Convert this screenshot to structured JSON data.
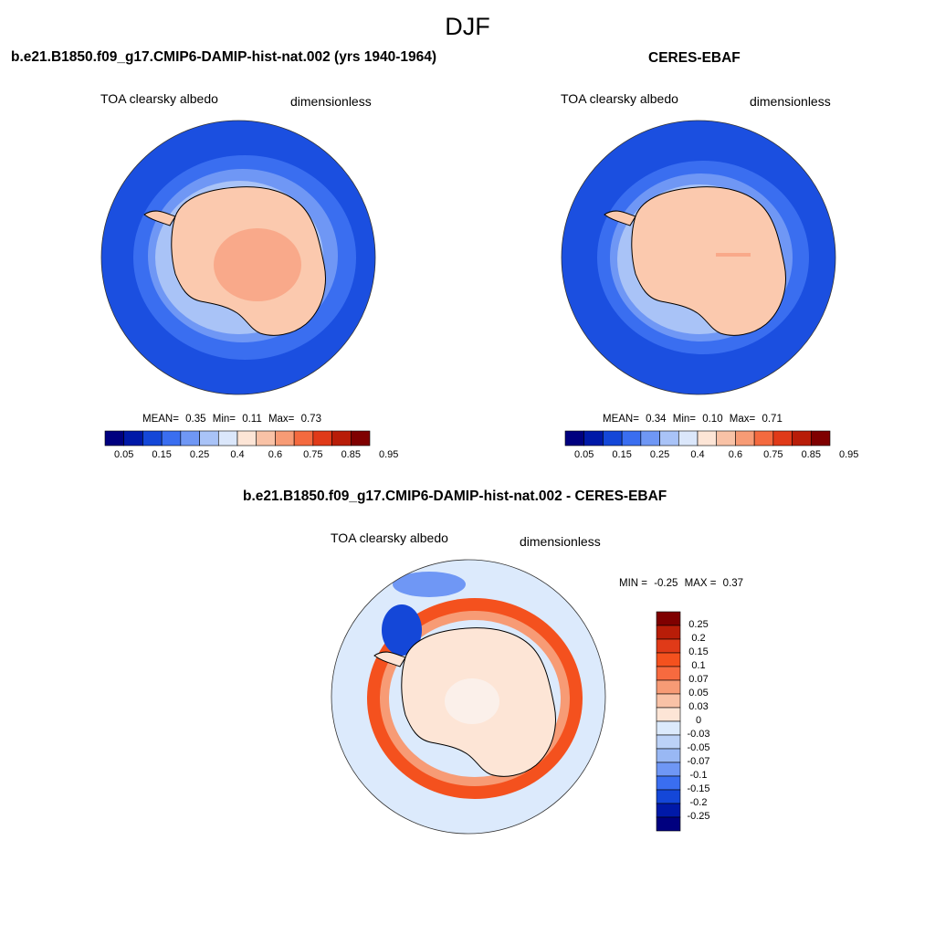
{
  "page": {
    "title": "DJF",
    "panel_left": {
      "case": "b.e21.B1850.f09_g17.CMIP6-DAMIP-hist-nat.002 (yrs 1940-1964)",
      "variable": "TOA clearsky albedo",
      "units": "dimensionless",
      "mean_label": "MEAN=",
      "mean": "0.35",
      "min_label": "Min=",
      "min": "0.11",
      "max_label": "Max=",
      "max": "0.73"
    },
    "panel_right": {
      "case": "CERES-EBAF",
      "variable": "TOA clearsky albedo",
      "units": "dimensionless",
      "mean_label": "MEAN=",
      "mean": "0.34",
      "min_label": "Min=",
      "min": "0.10",
      "max_label": "Max=",
      "max": "0.71"
    },
    "panel_diff": {
      "case": "b.e21.B1850.f09_g17.CMIP6-DAMIP-hist-nat.002 - CERES-EBAF",
      "variable": "TOA clearsky albedo",
      "units": "dimensionless",
      "min_label": "MIN =",
      "min": "-0.25",
      "max_label": "MAX =",
      "max": "0.37"
    },
    "colorbar_abs": {
      "labels": [
        "0.05",
        "0.15",
        "0.25",
        "0.4",
        "0.6",
        "0.75",
        "0.85",
        "0.95"
      ],
      "colors": [
        "#00007f",
        "#0019a8",
        "#1447d8",
        "#3a6ef0",
        "#6f97f5",
        "#a9c3f7",
        "#dbe7fb",
        "#fde5d6",
        "#f9c2a6",
        "#f79b75",
        "#f46a3f",
        "#e03a18",
        "#b81d08",
        "#7f0000"
      ]
    },
    "colorbar_diff": {
      "labels": [
        "0.25",
        "0.2",
        "0.15",
        "0.1",
        "0.07",
        "0.05",
        "0.03",
        "0",
        "-0.03",
        "-0.05",
        "-0.07",
        "-0.1",
        "-0.15",
        "-0.2",
        "-0.25"
      ],
      "colors": [
        "#7f0000",
        "#b81d08",
        "#e03a18",
        "#f4511e",
        "#f76a3f",
        "#f79b75",
        "#f9c2a6",
        "#fde5d6",
        "#dceafc",
        "#bcd2f7",
        "#99b8f4",
        "#6f97f5",
        "#3a6ef0",
        "#1447d8",
        "#0019a8",
        "#00007f"
      ]
    },
    "colors": {
      "ocean_deep": "#1b4fe0",
      "land_high": "#f9a98a",
      "land": "#fbc9ae",
      "coast": "#000000",
      "diff_bg": "#dceafc"
    }
  }
}
